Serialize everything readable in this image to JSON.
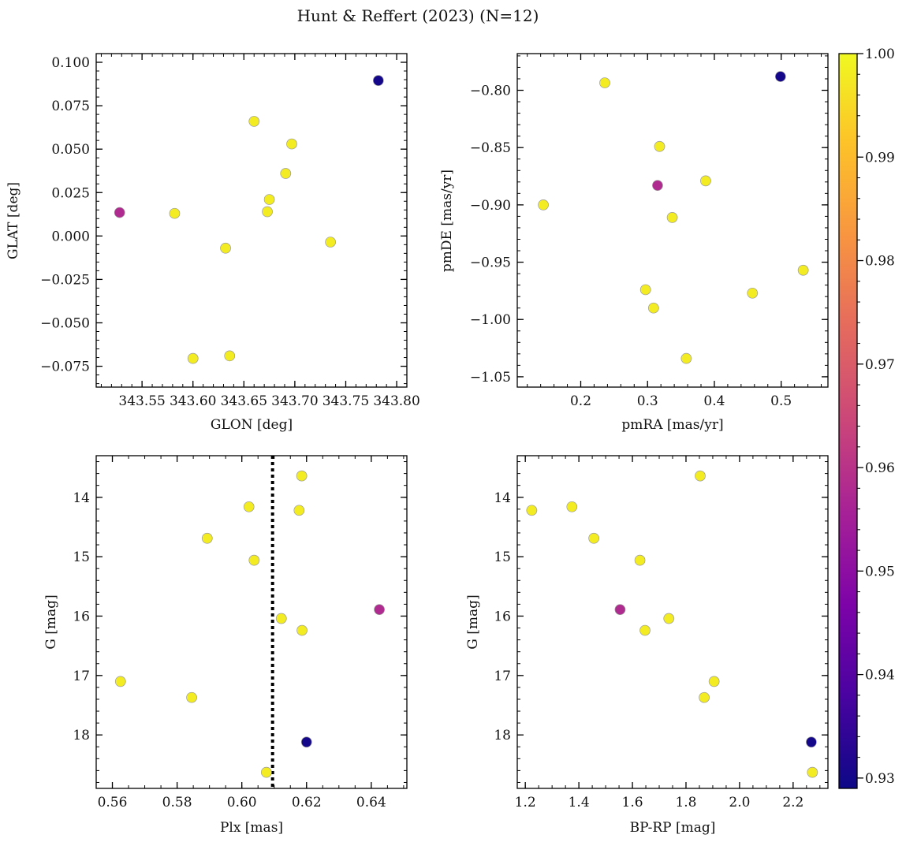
{
  "figure": {
    "title": "Hunt & Reffert (2023) (N=12)"
  },
  "chart_data": [
    {
      "type": "scatter",
      "id": "sky",
      "xlabel": "GLON [deg]",
      "ylabel": "GLAT [deg]",
      "xlim": [
        343.505,
        343.81
      ],
      "ylim": [
        -0.087,
        0.105
      ],
      "yinvert": false,
      "xticks": [
        343.55,
        343.6,
        343.65,
        343.7,
        343.75,
        343.8
      ],
      "xtick_labels": [
        "343.55",
        "343.60",
        "343.65",
        "343.70",
        "343.75",
        "343.80"
      ],
      "yticks": [
        -0.075,
        -0.05,
        -0.025,
        0.0,
        0.025,
        0.05,
        0.075,
        0.1
      ],
      "ytick_labels": [
        "−0.075",
        "−0.050",
        "−0.025",
        "0.000",
        "0.025",
        "0.050",
        "0.075",
        "0.100"
      ],
      "xminor": 0.01,
      "yminor": 0.005,
      "points": [
        {
          "x": 343.528,
          "y": 0.0135,
          "c": 0.958
        },
        {
          "x": 343.582,
          "y": 0.013,
          "c": 0.998
        },
        {
          "x": 343.6,
          "y": -0.0705,
          "c": 0.998
        },
        {
          "x": 343.632,
          "y": -0.007,
          "c": 0.998
        },
        {
          "x": 343.636,
          "y": -0.069,
          "c": 0.998
        },
        {
          "x": 343.66,
          "y": 0.066,
          "c": 0.998
        },
        {
          "x": 343.673,
          "y": 0.014,
          "c": 0.998
        },
        {
          "x": 343.675,
          "y": 0.021,
          "c": 0.998
        },
        {
          "x": 343.691,
          "y": 0.036,
          "c": 0.998
        },
        {
          "x": 343.697,
          "y": 0.053,
          "c": 0.998
        },
        {
          "x": 343.735,
          "y": -0.0035,
          "c": 0.998
        },
        {
          "x": 343.782,
          "y": 0.0895,
          "c": 0.93
        }
      ]
    },
    {
      "type": "scatter",
      "id": "pm",
      "xlabel": "pmRA [mas/yr]",
      "ylabel": "pmDE [mas/yr]",
      "xlim": [
        0.105,
        0.57
      ],
      "ylim": [
        -1.059,
        -0.768
      ],
      "yinvert": false,
      "xticks": [
        0.2,
        0.3,
        0.4,
        0.5
      ],
      "xtick_labels": [
        "0.2",
        "0.3",
        "0.4",
        "0.5"
      ],
      "yticks": [
        -1.05,
        -1.0,
        -0.95,
        -0.9,
        -0.85,
        -0.8
      ],
      "ytick_labels": [
        "−1.05",
        "−1.00",
        "−0.95",
        "−0.90",
        "−0.85",
        "−0.80"
      ],
      "xminor": 0.02,
      "yminor": 0.01,
      "points": [
        {
          "x": 0.144,
          "y": -0.9,
          "c": 0.998
        },
        {
          "x": 0.236,
          "y": -0.7935,
          "c": 0.998
        },
        {
          "x": 0.297,
          "y": -0.974,
          "c": 0.998
        },
        {
          "x": 0.309,
          "y": -0.99,
          "c": 0.998
        },
        {
          "x": 0.315,
          "y": -0.883,
          "c": 0.958
        },
        {
          "x": 0.318,
          "y": -0.849,
          "c": 0.998
        },
        {
          "x": 0.337,
          "y": -0.911,
          "c": 0.998
        },
        {
          "x": 0.358,
          "y": -1.034,
          "c": 0.998
        },
        {
          "x": 0.387,
          "y": -0.879,
          "c": 0.998
        },
        {
          "x": 0.457,
          "y": -0.977,
          "c": 0.998
        },
        {
          "x": 0.499,
          "y": -0.788,
          "c": 0.93
        },
        {
          "x": 0.533,
          "y": -0.957,
          "c": 0.998
        }
      ]
    },
    {
      "type": "scatter",
      "id": "plx",
      "xlabel": "Plx [mas]",
      "ylabel": "G [mag]",
      "xlim": [
        0.555,
        0.651
      ],
      "ylim": [
        13.3,
        18.9
      ],
      "yinvert": true,
      "vline": 0.6095,
      "xticks": [
        0.56,
        0.58,
        0.6,
        0.62,
        0.64
      ],
      "xtick_labels": [
        "0.56",
        "0.58",
        "0.60",
        "0.62",
        "0.64"
      ],
      "yticks": [
        14,
        15,
        16,
        17,
        18
      ],
      "ytick_labels": [
        "14",
        "15",
        "16",
        "17",
        "18"
      ],
      "xminor": 0.005,
      "yminor": 0.2,
      "points": [
        {
          "x": 0.5625,
          "y": 17.1,
          "c": 0.998
        },
        {
          "x": 0.5845,
          "y": 17.37,
          "c": 0.998
        },
        {
          "x": 0.5893,
          "y": 14.69,
          "c": 0.998
        },
        {
          "x": 0.6022,
          "y": 14.16,
          "c": 0.998
        },
        {
          "x": 0.6038,
          "y": 15.06,
          "c": 0.998
        },
        {
          "x": 0.6076,
          "y": 18.63,
          "c": 0.998
        },
        {
          "x": 0.6122,
          "y": 16.04,
          "c": 0.998
        },
        {
          "x": 0.6177,
          "y": 14.22,
          "c": 0.998
        },
        {
          "x": 0.6185,
          "y": 13.64,
          "c": 0.998
        },
        {
          "x": 0.6186,
          "y": 16.24,
          "c": 0.998
        },
        {
          "x": 0.62,
          "y": 18.12,
          "c": 0.93
        },
        {
          "x": 0.6425,
          "y": 15.89,
          "c": 0.958
        }
      ]
    },
    {
      "type": "scatter",
      "id": "cmd",
      "xlabel": "BP-RP [mag]",
      "ylabel": "G [mag]",
      "xlim": [
        1.17,
        2.33
      ],
      "ylim": [
        13.3,
        18.9
      ],
      "yinvert": true,
      "xticks": [
        1.2,
        1.4,
        1.6,
        1.8,
        2.0,
        2.2
      ],
      "xtick_labels": [
        "1.2",
        "1.4",
        "1.6",
        "1.8",
        "2.0",
        "2.2"
      ],
      "yticks": [
        14,
        15,
        16,
        17,
        18
      ],
      "ytick_labels": [
        "14",
        "15",
        "16",
        "17",
        "18"
      ],
      "xminor": 0.05,
      "yminor": 0.2,
      "points": [
        {
          "x": 1.224,
          "y": 14.22,
          "c": 0.998
        },
        {
          "x": 1.374,
          "y": 14.16,
          "c": 0.998
        },
        {
          "x": 1.456,
          "y": 14.69,
          "c": 0.998
        },
        {
          "x": 1.554,
          "y": 15.89,
          "c": 0.958
        },
        {
          "x": 1.628,
          "y": 15.06,
          "c": 0.998
        },
        {
          "x": 1.647,
          "y": 16.24,
          "c": 0.998
        },
        {
          "x": 1.736,
          "y": 16.04,
          "c": 0.998
        },
        {
          "x": 1.853,
          "y": 13.64,
          "c": 0.998
        },
        {
          "x": 1.868,
          "y": 17.37,
          "c": 0.998
        },
        {
          "x": 1.905,
          "y": 17.1,
          "c": 0.998
        },
        {
          "x": 2.268,
          "y": 18.12,
          "c": 0.93
        },
        {
          "x": 2.272,
          "y": 18.63,
          "c": 0.998
        }
      ]
    }
  ],
  "colorbar": {
    "cmap": "plasma",
    "range": [
      0.929,
      1.0
    ],
    "ticks": [
      0.93,
      0.94,
      0.95,
      0.96,
      0.97,
      0.98,
      0.99,
      1.0
    ],
    "tick_labels": [
      "0.93",
      "0.94",
      "0.95",
      "0.96",
      "0.97",
      "0.98",
      "0.99",
      "1.00"
    ],
    "minor": 0.002
  }
}
